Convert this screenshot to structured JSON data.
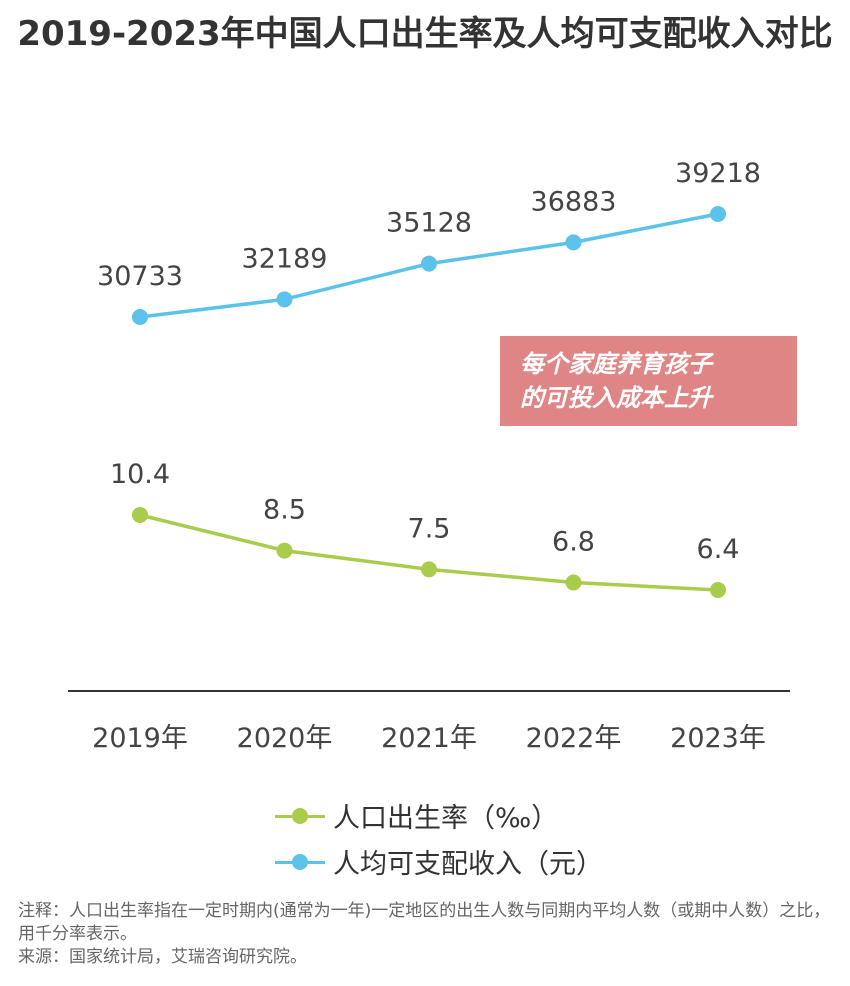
{
  "title": "2019-2023年中国人口出生率及人均可支配收入对比",
  "annotation": [
    "每个家庭养育孩子",
    "的可投入成本上升"
  ],
  "chart_data": {
    "type": "line",
    "categories": [
      "2019年",
      "2020年",
      "2021年",
      "2022年",
      "2023年"
    ],
    "series": [
      {
        "name": "人口出生率（‰）",
        "values": [
          10.4,
          8.5,
          7.5,
          6.8,
          6.4
        ],
        "color": "#a9cc4c"
      },
      {
        "name": "人均可支配收入（元）",
        "values": [
          30733,
          32189,
          35128,
          36883,
          39218
        ],
        "color": "#5bc3ea"
      }
    ],
    "data_labels": true,
    "grid": false,
    "legend_position": "bottom"
  },
  "footnote": {
    "note": "注释：人口出生率指在一定时期内(通常为一年)一定地区的出生人数与同期内平均人数（或期中人数）之比，用千分率表示。",
    "source": "来源：国家统计局，艾瑞咨询研究院。"
  }
}
